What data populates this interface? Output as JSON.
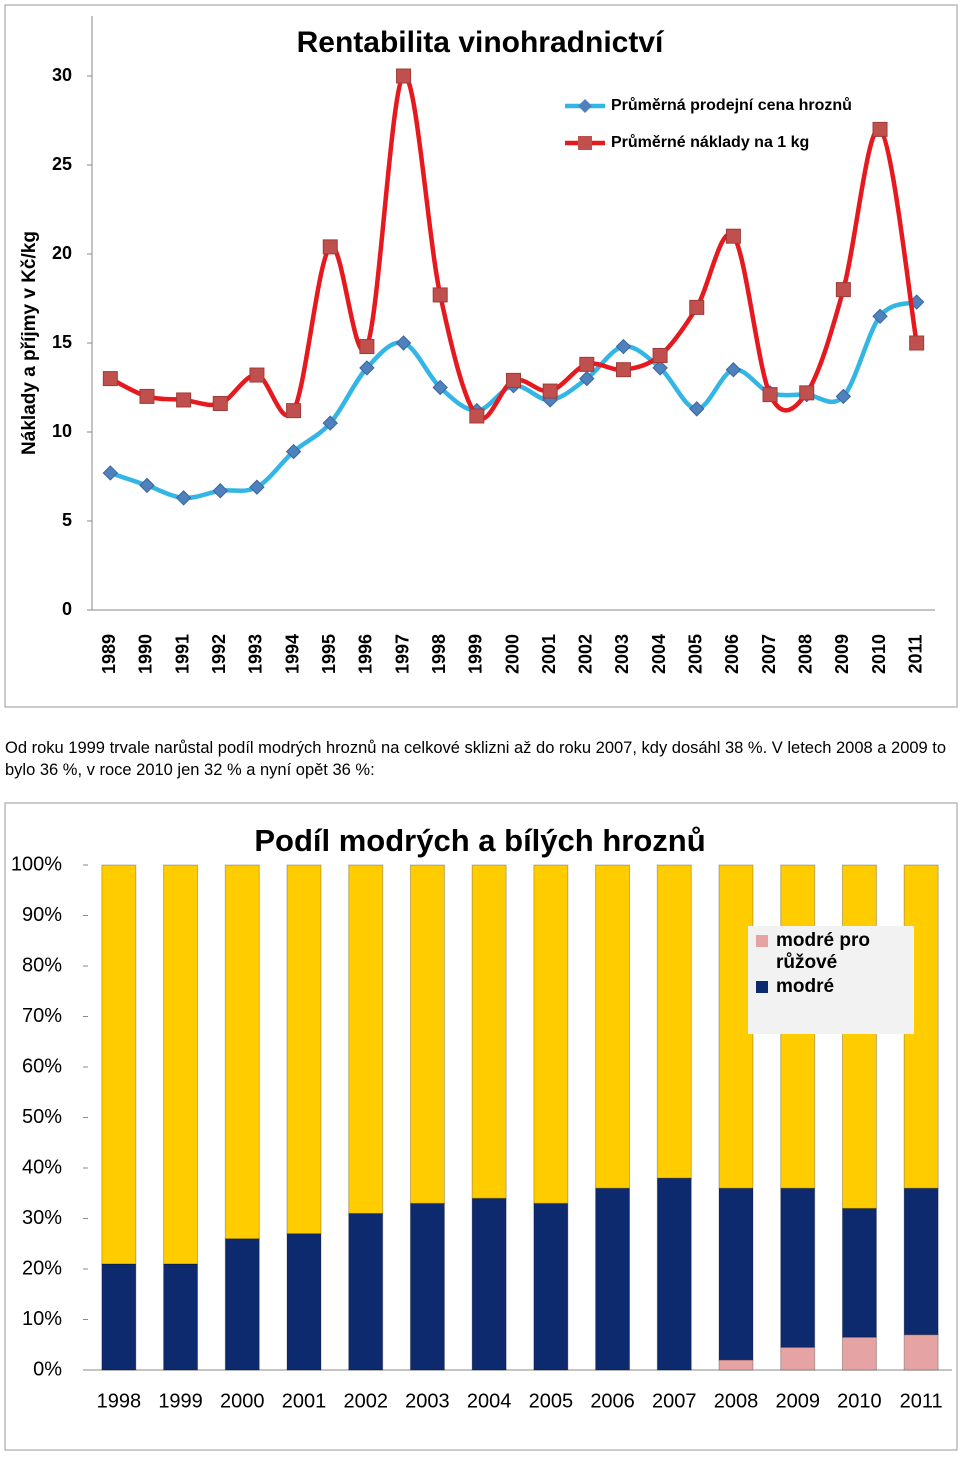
{
  "chart_data": [
    {
      "type": "line",
      "title": "Rentabilita vinohradnictví",
      "y_label": "Náklady a příjmy v Kč/kg",
      "categories": [
        "1989",
        "1990",
        "1991",
        "1992",
        "1993",
        "1994",
        "1995",
        "1996",
        "1997",
        "1998",
        "1999",
        "2000",
        "2001",
        "2002",
        "2003",
        "2004",
        "2005",
        "2006",
        "2007",
        "2008",
        "2009",
        "2010",
        "2011"
      ],
      "series": [
        {
          "name": "Průměrná prodejní cena hroznů",
          "color": "#33B5E5",
          "marker_color": "#4F81BD",
          "marker": "diamond",
          "values": [
            7.7,
            7.0,
            6.3,
            6.7,
            6.9,
            8.9,
            10.5,
            13.6,
            15.0,
            12.5,
            11.2,
            12.6,
            11.8,
            13.0,
            14.8,
            13.6,
            11.3,
            13.5,
            12.2,
            12.1,
            12.0,
            16.5,
            17.3
          ]
        },
        {
          "name": "Průměrné náklady na 1 kg",
          "color": "#E5191E",
          "marker_color": "#C0504D",
          "marker": "square",
          "values": [
            13.0,
            12.0,
            11.8,
            11.6,
            13.2,
            11.2,
            20.4,
            14.8,
            30.0,
            17.7,
            10.9,
            12.9,
            12.3,
            13.8,
            13.5,
            14.3,
            17.0,
            21.0,
            12.1,
            12.2,
            18.0,
            27.0,
            15.0
          ]
        }
      ],
      "ylim": [
        0,
        30
      ],
      "yticks": [
        0,
        5,
        10,
        15,
        20,
        25,
        30
      ],
      "grid": false,
      "legend": "top-right"
    },
    {
      "type": "stacked_bar",
      "title": "Podíl modrých a bílých hroznů",
      "categories": [
        "1998",
        "1999",
        "2000",
        "2001",
        "2002",
        "2003",
        "2004",
        "2005",
        "2006",
        "2007",
        "2008",
        "2009",
        "2010",
        "2011"
      ],
      "series": [
        {
          "name": "modré pro růžové",
          "color": "#E6A3A3",
          "values": [
            0,
            0,
            0,
            0,
            0,
            0,
            0,
            0,
            0,
            0,
            2,
            4.5,
            6.5,
            7
          ]
        },
        {
          "name": "modré",
          "color": "#0E2A6E",
          "values": [
            21,
            21,
            26,
            27,
            31,
            33,
            34,
            33,
            36,
            38,
            34,
            31.5,
            25.5,
            29
          ]
        },
        {
          "color": "#FFCC00",
          "values": [
            79,
            79,
            74,
            73,
            69,
            67,
            66,
            67,
            64,
            62,
            64,
            64,
            68,
            64
          ]
        }
      ],
      "ylim": [
        0,
        100
      ],
      "yticks": [
        {
          "value": 0,
          "label": "0%"
        },
        {
          "value": 10,
          "label": "10%"
        },
        {
          "value": 20,
          "label": "20%"
        },
        {
          "value": 30,
          "label": "30%"
        },
        {
          "value": 40,
          "label": "40%"
        },
        {
          "value": 50,
          "label": "50%"
        },
        {
          "value": 60,
          "label": "60%"
        },
        {
          "value": 70,
          "label": "70%"
        },
        {
          "value": 80,
          "label": "80%"
        },
        {
          "value": 90,
          "label": "90%"
        },
        {
          "value": 100,
          "label": "100%"
        }
      ],
      "grid": false,
      "legend": "top-right"
    }
  ],
  "paragraph": "Od roku 1999 trvale narůstal podíl modrých hroznů na celkové sklizni až do roku 2007, kdy dosáhl 38 %. V letech 2008 a 2009 to bylo 36 %, v roce 2010 jen 32 % a nyní opět 36 %:"
}
